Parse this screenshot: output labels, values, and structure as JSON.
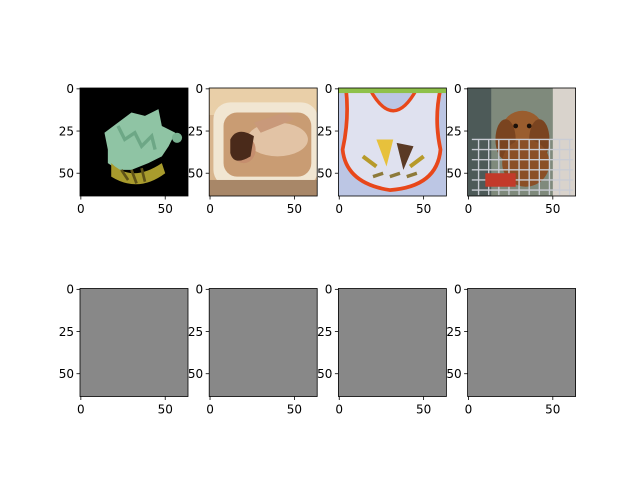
{
  "figure": {
    "background": "#ffffff"
  },
  "chart_data": [
    {
      "type": "image",
      "row": 0,
      "col": 0,
      "content": "green-spiral-seashell-on-black",
      "image_shape": [
        64,
        64
      ],
      "xticks": [
        0,
        50
      ],
      "yticks": [
        0,
        25,
        50
      ],
      "xlim": [
        -0.5,
        63.5
      ],
      "ylim": [
        63.5,
        -0.5
      ]
    },
    {
      "type": "image",
      "row": 0,
      "col": 1,
      "content": "person-reclining-in-bathtub",
      "image_shape": [
        64,
        64
      ],
      "xticks": [
        0,
        50
      ],
      "yticks": [
        0,
        25,
        50
      ],
      "xlim": [
        -0.5,
        63.5
      ],
      "ylim": [
        63.5,
        -0.5
      ]
    },
    {
      "type": "image",
      "row": 0,
      "col": 2,
      "content": "bib-with-orange-trim-and-candy",
      "image_shape": [
        64,
        64
      ],
      "xticks": [
        0,
        50
      ],
      "yticks": [
        0,
        25,
        50
      ],
      "xlim": [
        -0.5,
        63.5
      ],
      "ylim": [
        63.5,
        -0.5
      ]
    },
    {
      "type": "image",
      "row": 0,
      "col": 3,
      "content": "spaniel-dog-in-shopping-cart",
      "image_shape": [
        64,
        64
      ],
      "xticks": [
        0,
        50
      ],
      "yticks": [
        0,
        25,
        50
      ],
      "xlim": [
        -0.5,
        63.5
      ],
      "ylim": [
        63.5,
        -0.5
      ]
    },
    {
      "type": "image",
      "row": 1,
      "col": 0,
      "content": "uniform-gray",
      "fill_color": "#888888",
      "image_shape": [
        64,
        64
      ],
      "xticks": [
        0,
        50
      ],
      "yticks": [
        0,
        25,
        50
      ],
      "xlim": [
        -0.5,
        63.5
      ],
      "ylim": [
        63.5,
        -0.5
      ]
    },
    {
      "type": "image",
      "row": 1,
      "col": 1,
      "content": "uniform-gray",
      "fill_color": "#888888",
      "image_shape": [
        64,
        64
      ],
      "xticks": [
        0,
        50
      ],
      "yticks": [
        0,
        25,
        50
      ],
      "xlim": [
        -0.5,
        63.5
      ],
      "ylim": [
        63.5,
        -0.5
      ]
    },
    {
      "type": "image",
      "row": 1,
      "col": 2,
      "content": "uniform-gray",
      "fill_color": "#888888",
      "image_shape": [
        64,
        64
      ],
      "xticks": [
        0,
        50
      ],
      "yticks": [
        0,
        25,
        50
      ],
      "xlim": [
        -0.5,
        63.5
      ],
      "ylim": [
        63.5,
        -0.5
      ]
    },
    {
      "type": "image",
      "row": 1,
      "col": 3,
      "content": "uniform-gray",
      "fill_color": "#888888",
      "image_shape": [
        64,
        64
      ],
      "xticks": [
        0,
        50
      ],
      "yticks": [
        0,
        25,
        50
      ],
      "xlim": [
        -0.5,
        63.5
      ],
      "ylim": [
        63.5,
        -0.5
      ]
    }
  ]
}
